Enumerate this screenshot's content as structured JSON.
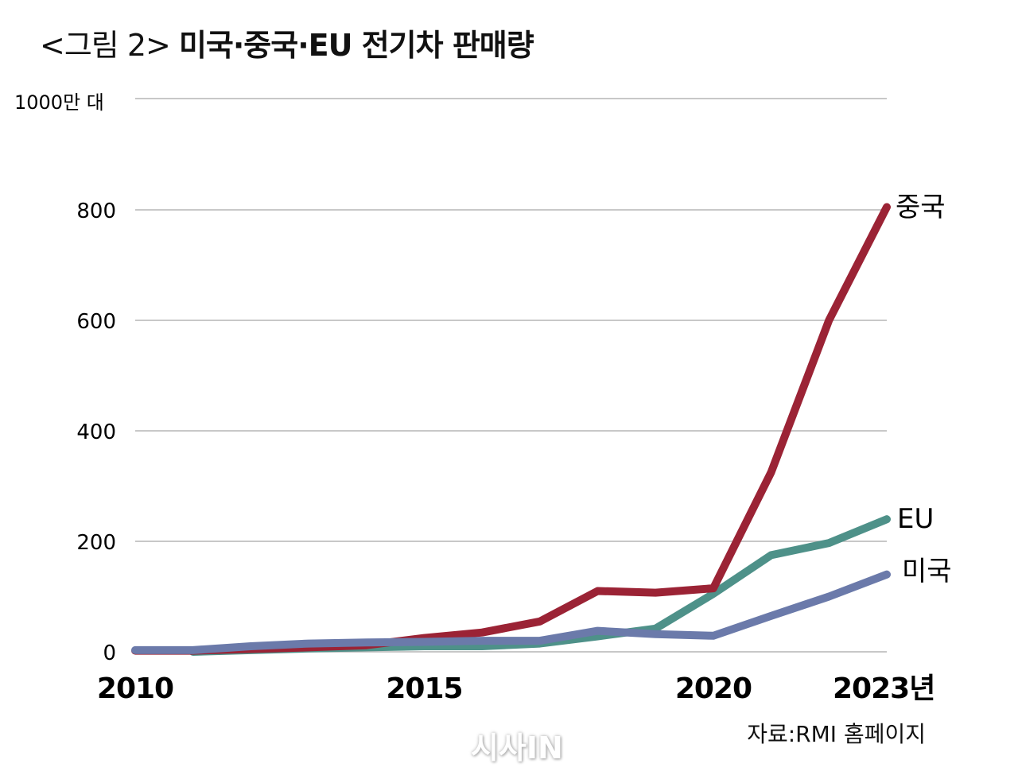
{
  "title": {
    "prefix": "<그림 2>",
    "main": "미국·중국·EU 전기차 판매량"
  },
  "source": "자료:RMI 홈페이지",
  "watermark": "시사IN",
  "chart_data": {
    "type": "line",
    "title": "<그림 2> 미국·중국·EU 전기차 판매량",
    "ylabel": "1000만 대",
    "xlabel": "",
    "ylim": [
      0,
      1000
    ],
    "yticks": [
      0,
      200,
      400,
      600,
      800
    ],
    "ytick_labels": [
      "0",
      "200",
      "400",
      "600",
      "800"
    ],
    "unit_label": "1000만 대",
    "xlim": [
      2010,
      2023
    ],
    "xticks": [
      2010,
      2015,
      2020,
      2023
    ],
    "xtick_labels": [
      "2010",
      "2015",
      "2020",
      "2023년"
    ],
    "grid": true,
    "x": [
      2010,
      2011,
      2012,
      2013,
      2014,
      2015,
      2016,
      2017,
      2018,
      2019,
      2020,
      2021,
      2022,
      2023
    ],
    "series": [
      {
        "name": "중국",
        "color": "#9b2335",
        "values": [
          2,
          2,
          5,
          8,
          12,
          25,
          35,
          55,
          110,
          107,
          115,
          325,
          600,
          805
        ]
      },
      {
        "name": "EU",
        "color": "#4e9189",
        "values": [
          null,
          0,
          3,
          6,
          8,
          10,
          10,
          15,
          28,
          42,
          105,
          175,
          197,
          240
        ]
      },
      {
        "name": "미국",
        "color": "#6b7aaa",
        "values": [
          3,
          3,
          10,
          15,
          17,
          18,
          20,
          20,
          38,
          32,
          29,
          65,
          100,
          140
        ]
      }
    ]
  }
}
